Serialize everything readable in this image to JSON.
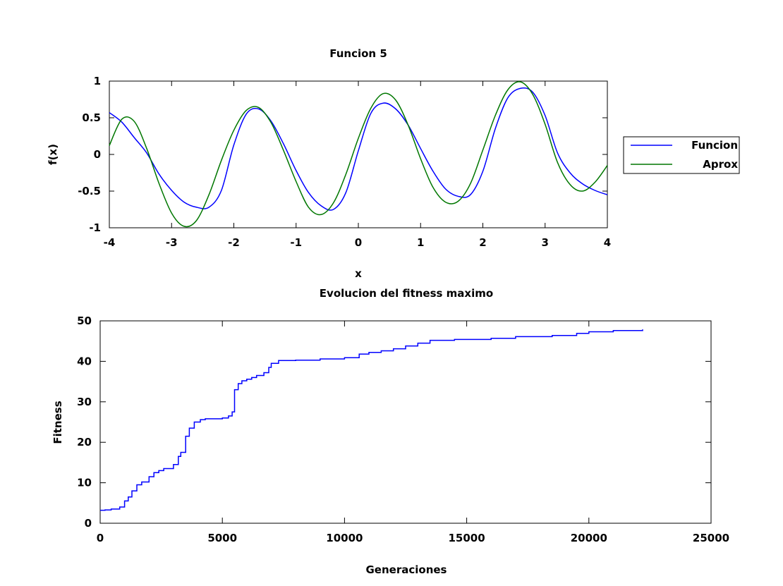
{
  "chart_data": [
    {
      "type": "line",
      "title": "Funcion 5",
      "xlabel": "x",
      "ylabel": "f(x)",
      "xlim": [
        -4,
        4
      ],
      "ylim": [
        -1,
        1
      ],
      "xticks": [
        "-4",
        "-3",
        "-2",
        "-1",
        "0",
        "1",
        "2",
        "3",
        "4"
      ],
      "yticks": [
        "1",
        "0.5",
        "0",
        "-0.5",
        "-1"
      ],
      "legend_position": "right",
      "series": [
        {
          "name": "Funcion",
          "color": "#0000ff",
          "x": [
            -4.0,
            -3.8,
            -3.6,
            -3.4,
            -3.2,
            -3.0,
            -2.8,
            -2.6,
            -2.4,
            -2.2,
            -2.0,
            -1.8,
            -1.6,
            -1.4,
            -1.2,
            -1.0,
            -0.8,
            -0.6,
            -0.4,
            -0.2,
            0.0,
            0.2,
            0.4,
            0.6,
            0.8,
            1.0,
            1.2,
            1.4,
            1.6,
            1.8,
            2.0,
            2.2,
            2.4,
            2.6,
            2.8,
            3.0,
            3.2,
            3.4,
            3.6,
            3.8,
            4.0
          ],
          "y": [
            0.57,
            0.44,
            0.23,
            0.02,
            -0.27,
            -0.49,
            -0.65,
            -0.72,
            -0.72,
            -0.49,
            0.13,
            0.55,
            0.62,
            0.45,
            0.14,
            -0.22,
            -0.52,
            -0.7,
            -0.75,
            -0.52,
            0.05,
            0.56,
            0.7,
            0.62,
            0.4,
            0.08,
            -0.23,
            -0.47,
            -0.57,
            -0.55,
            -0.23,
            0.35,
            0.77,
            0.9,
            0.85,
            0.53,
            0.02,
            -0.25,
            -0.4,
            -0.49,
            -0.55
          ]
        },
        {
          "name": "Aprox",
          "color": "#007700",
          "x": [
            -4.0,
            -3.8,
            -3.6,
            -3.4,
            -3.2,
            -3.0,
            -2.8,
            -2.6,
            -2.4,
            -2.2,
            -2.0,
            -1.8,
            -1.6,
            -1.4,
            -1.2,
            -1.0,
            -0.8,
            -0.6,
            -0.4,
            -0.2,
            0.0,
            0.2,
            0.4,
            0.6,
            0.8,
            1.0,
            1.2,
            1.4,
            1.6,
            1.8,
            2.0,
            2.2,
            2.4,
            2.6,
            2.8,
            3.0,
            3.2,
            3.4,
            3.6,
            3.8,
            4.0
          ],
          "y": [
            0.12,
            0.48,
            0.45,
            0.08,
            -0.4,
            -0.8,
            -0.98,
            -0.9,
            -0.55,
            -0.08,
            0.33,
            0.6,
            0.64,
            0.43,
            0.05,
            -0.37,
            -0.72,
            -0.82,
            -0.66,
            -0.27,
            0.22,
            0.63,
            0.83,
            0.74,
            0.4,
            -0.06,
            -0.45,
            -0.65,
            -0.64,
            -0.4,
            0.06,
            0.53,
            0.88,
            0.99,
            0.82,
            0.41,
            -0.11,
            -0.41,
            -0.5,
            -0.38,
            -0.15
          ]
        }
      ]
    },
    {
      "type": "line",
      "title": "Evolucion del fitness maximo",
      "xlabel": "Generaciones",
      "ylabel": "Fitness",
      "xlim": [
        0,
        25000
      ],
      "ylim": [
        0,
        50
      ],
      "xticks": [
        "0",
        "5000",
        "10000",
        "15000",
        "20000",
        "25000"
      ],
      "yticks": [
        "50",
        "40",
        "30",
        "20",
        "10",
        "0"
      ],
      "legend_position": "none",
      "series": [
        {
          "color": "#0000ff",
          "x": [
            0,
            200,
            450,
            800,
            1000,
            1150,
            1300,
            1500,
            1700,
            2000,
            2200,
            2400,
            2600,
            3000,
            3200,
            3300,
            3500,
            3650,
            3850,
            4100,
            4300,
            5000,
            5250,
            5400,
            5500,
            5650,
            5800,
            6000,
            6200,
            6400,
            6700,
            6900,
            7000,
            7300,
            8000,
            9000,
            10000,
            10600,
            11000,
            11500,
            12000,
            12500,
            13000,
            13500,
            14500,
            16000,
            17000,
            18500,
            19500,
            20000,
            21000,
            22200
          ],
          "y": [
            3.2,
            3.3,
            3.5,
            4.0,
            5.5,
            6.5,
            8.0,
            9.5,
            10.2,
            11.5,
            12.5,
            13.0,
            13.5,
            14.5,
            16.5,
            17.5,
            21.5,
            23.5,
            25.0,
            25.6,
            25.8,
            26.0,
            26.5,
            27.5,
            33.0,
            34.5,
            35.2,
            35.6,
            36.0,
            36.5,
            37.2,
            38.5,
            39.5,
            40.2,
            40.3,
            40.6,
            40.9,
            41.8,
            42.2,
            42.6,
            43.1,
            43.8,
            44.5,
            45.2,
            45.4,
            45.7,
            46.1,
            46.4,
            46.9,
            47.3,
            47.6,
            47.9
          ]
        }
      ]
    }
  ]
}
